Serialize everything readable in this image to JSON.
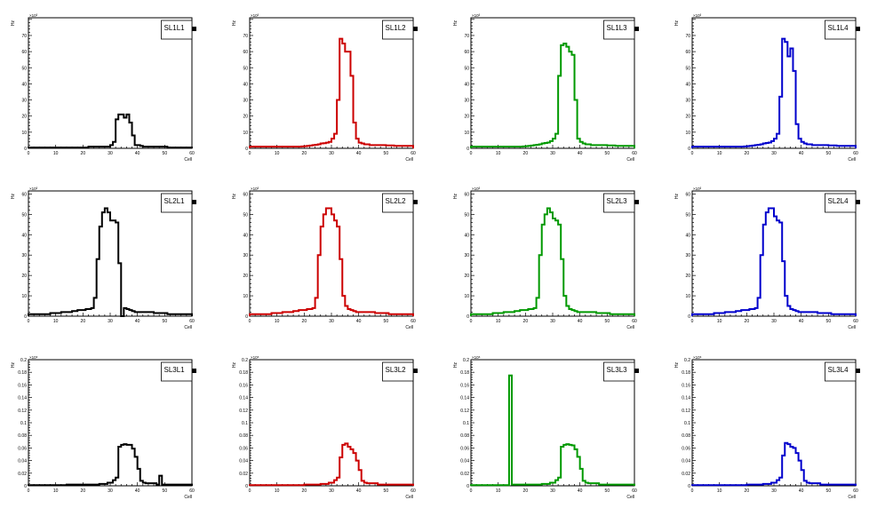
{
  "chart_data": [
    {
      "type": "histogram",
      "title": "SL1L1",
      "xlabel": "Cell",
      "ylabel": "Hz",
      "y_multiplier": "×10³",
      "color": "#000000",
      "xlim": [
        0,
        60
      ],
      "ylim": [
        0,
        81
      ],
      "xticks": [
        "0",
        "10",
        "20",
        "30",
        "40",
        "50",
        "60"
      ],
      "yticks": [
        "0",
        "10",
        "20",
        "30",
        "40",
        "50",
        "60",
        "70"
      ],
      "ytick_values": [
        0,
        10,
        20,
        30,
        40,
        50,
        60,
        70
      ],
      "values": [
        0.5,
        0.5,
        0.5,
        0.5,
        0.5,
        0.5,
        0.5,
        0.5,
        0.5,
        0.5,
        0.5,
        0.5,
        0.5,
        0.5,
        0.5,
        0.5,
        0.5,
        0.5,
        0.5,
        0.5,
        0.5,
        0.5,
        1,
        1,
        1,
        1,
        1,
        1,
        1,
        1,
        2,
        4,
        18,
        21,
        21,
        19,
        21,
        16,
        8,
        2,
        2,
        1.5,
        1,
        1,
        1,
        1,
        1,
        1,
        1,
        1,
        1,
        0.5,
        0.5,
        0.5,
        0.5,
        0.5,
        0.5,
        0.5,
        0.5,
        0.5
      ]
    },
    {
      "type": "histogram",
      "title": "SL1L2",
      "xlabel": "Cell",
      "ylabel": "Hz",
      "y_multiplier": "×10³",
      "color": "#cc0000",
      "xlim": [
        0,
        60
      ],
      "ylim": [
        0,
        81
      ],
      "xticks": [
        "0",
        "10",
        "20",
        "30",
        "40",
        "50",
        "60"
      ],
      "yticks": [
        "0",
        "10",
        "20",
        "30",
        "40",
        "50",
        "60",
        "70"
      ],
      "ytick_values": [
        0,
        10,
        20,
        30,
        40,
        50,
        60,
        70
      ],
      "values": [
        1,
        1,
        1,
        1,
        1,
        1,
        1,
        1,
        1,
        1,
        1,
        1,
        1,
        1,
        1,
        1,
        1,
        1,
        1,
        1.2,
        1.3,
        1.5,
        1.7,
        2,
        2.2,
        2.5,
        3,
        3.2,
        3.5,
        4,
        6,
        9,
        30,
        68,
        65,
        60,
        60,
        45,
        16,
        6,
        3.5,
        3,
        2.5,
        2.5,
        2,
        2,
        2,
        2,
        2,
        2,
        1.8,
        1.8,
        1.8,
        1.5,
        1.5,
        1.5,
        1.5,
        1.5,
        1.5,
        1.5
      ]
    },
    {
      "type": "histogram",
      "title": "SL1L3",
      "xlabel": "Cell",
      "ylabel": "Hz",
      "y_multiplier": "×10³",
      "color": "#009900",
      "xlim": [
        0,
        60
      ],
      "ylim": [
        0,
        81
      ],
      "xticks": [
        "0",
        "10",
        "20",
        "30",
        "40",
        "50",
        "60"
      ],
      "yticks": [
        "0",
        "10",
        "20",
        "30",
        "40",
        "50",
        "60",
        "70"
      ],
      "ytick_values": [
        0,
        10,
        20,
        30,
        40,
        50,
        60,
        70
      ],
      "values": [
        1,
        1,
        1,
        1,
        1,
        1,
        1,
        1,
        1,
        1,
        1,
        1,
        1,
        1,
        1,
        1,
        1,
        1,
        1,
        1.2,
        1.3,
        1.5,
        1.7,
        2,
        2.2,
        2.5,
        3,
        3.3,
        3.6,
        4.5,
        6,
        9,
        45,
        64,
        65,
        63,
        60,
        58,
        30,
        6,
        4,
        3,
        2.5,
        2.5,
        2,
        2,
        2,
        2,
        2,
        2,
        1.8,
        1.8,
        1.8,
        1.5,
        1.5,
        1.5,
        1.5,
        1.5,
        1.5,
        1.5
      ]
    },
    {
      "type": "histogram",
      "title": "SL1L4",
      "xlabel": "Cell",
      "ylabel": "Hz",
      "y_multiplier": "×10³",
      "color": "#0000cc",
      "xlim": [
        0,
        60
      ],
      "ylim": [
        0,
        81
      ],
      "xticks": [
        "0",
        "10",
        "20",
        "30",
        "40",
        "50",
        "60"
      ],
      "yticks": [
        "0",
        "10",
        "20",
        "30",
        "40",
        "50",
        "60",
        "70"
      ],
      "ytick_values": [
        0,
        10,
        20,
        30,
        40,
        50,
        60,
        70
      ],
      "values": [
        1,
        1,
        1,
        1,
        1,
        1,
        1,
        1,
        1,
        1,
        1,
        1,
        1,
        1,
        1,
        1,
        1,
        1,
        1,
        1.2,
        1.3,
        1.5,
        1.7,
        2,
        2.2,
        2.5,
        3,
        3.3,
        3.6,
        4.5,
        6,
        9,
        32,
        68,
        66,
        57,
        62,
        48,
        15,
        6,
        4,
        3,
        2.5,
        2.5,
        2,
        2,
        2,
        2,
        2,
        2,
        1.8,
        1.8,
        1.8,
        1.5,
        1.5,
        1.5,
        1.5,
        1.5,
        1.5,
        1.5
      ]
    },
    {
      "type": "histogram",
      "title": "SL2L1",
      "xlabel": "Cell",
      "ylabel": "Hz",
      "y_multiplier": "×10³",
      "color": "#000000",
      "xlim": [
        0,
        60
      ],
      "ylim": [
        0,
        61.5
      ],
      "xticks": [
        "0",
        "10",
        "20",
        "30",
        "40",
        "50",
        "60"
      ],
      "yticks": [
        "0",
        "10",
        "20",
        "30",
        "40",
        "50",
        "60"
      ],
      "ytick_values": [
        0,
        10,
        20,
        30,
        40,
        50,
        60
      ],
      "values": [
        1,
        1,
        1,
        1,
        1,
        1,
        1,
        1,
        1.5,
        1.5,
        1.5,
        1.5,
        2,
        2,
        2,
        2,
        2.5,
        2.5,
        3,
        3,
        3,
        3.5,
        3.5,
        4,
        9,
        28,
        44,
        51,
        53,
        51,
        47,
        47,
        46,
        26,
        0,
        4,
        3.5,
        3,
        2.5,
        2,
        2,
        2,
        2,
        2,
        2,
        2,
        1.5,
        1.5,
        1.5,
        1.5,
        1.5,
        1,
        1,
        1,
        1,
        1,
        1,
        1,
        1,
        1
      ]
    },
    {
      "type": "histogram",
      "title": "SL2L2",
      "xlabel": "Cell",
      "ylabel": "Hz",
      "y_multiplier": "×10³",
      "color": "#cc0000",
      "xlim": [
        0,
        60
      ],
      "ylim": [
        0,
        61.5
      ],
      "xticks": [
        "0",
        "10",
        "20",
        "30",
        "40",
        "50",
        "60"
      ],
      "yticks": [
        "0",
        "10",
        "20",
        "30",
        "40",
        "50",
        "60"
      ],
      "ytick_values": [
        0,
        10,
        20,
        30,
        40,
        50,
        60
      ],
      "values": [
        1,
        1,
        1,
        1,
        1,
        1,
        1,
        1,
        1.5,
        1.5,
        1.5,
        1.5,
        2,
        2,
        2,
        2,
        2.5,
        2.5,
        3,
        3,
        3,
        3.5,
        3.5,
        4,
        9,
        30,
        44,
        50,
        53,
        53,
        50,
        47,
        44,
        28,
        10,
        5,
        3.5,
        3,
        2.5,
        2,
        2,
        2,
        2,
        2,
        2,
        2,
        1.5,
        1.5,
        1.5,
        1.5,
        1.5,
        1,
        1,
        1,
        1,
        1,
        1,
        1,
        1,
        1
      ]
    },
    {
      "type": "histogram",
      "title": "SL2L3",
      "xlabel": "Cell",
      "ylabel": "Hz",
      "y_multiplier": "×10³",
      "color": "#009900",
      "xlim": [
        0,
        60
      ],
      "ylim": [
        0,
        61.5
      ],
      "xticks": [
        "0",
        "10",
        "20",
        "30",
        "40",
        "50",
        "60"
      ],
      "yticks": [
        "0",
        "10",
        "20",
        "30",
        "40",
        "50",
        "60"
      ],
      "ytick_values": [
        0,
        10,
        20,
        30,
        40,
        50,
        60
      ],
      "values": [
        1,
        1,
        1,
        1,
        1,
        1,
        1,
        1,
        1.5,
        1.5,
        1.5,
        1.5,
        2,
        2,
        2,
        2,
        2.5,
        2.5,
        3,
        3,
        3,
        3.5,
        3.5,
        4,
        9,
        30,
        45,
        50,
        53,
        51,
        48,
        47,
        45,
        28,
        10,
        5,
        3.5,
        3,
        2.5,
        2,
        2,
        2,
        2,
        2,
        2,
        2,
        1.5,
        1.5,
        1.5,
        1.5,
        1.5,
        1,
        1,
        1,
        1,
        1,
        1,
        1,
        1,
        1
      ]
    },
    {
      "type": "histogram",
      "title": "SL2L4",
      "xlabel": "Cell",
      "ylabel": "Hz",
      "y_multiplier": "×10³",
      "color": "#0000cc",
      "xlim": [
        0,
        60
      ],
      "ylim": [
        0,
        61.5
      ],
      "xticks": [
        "0",
        "10",
        "20",
        "30",
        "40",
        "50",
        "60"
      ],
      "yticks": [
        "0",
        "10",
        "20",
        "30",
        "40",
        "50",
        "60"
      ],
      "ytick_values": [
        0,
        10,
        20,
        30,
        40,
        50,
        60
      ],
      "values": [
        1,
        1,
        1,
        1,
        1,
        1,
        1,
        1,
        1.5,
        1.5,
        1.5,
        1.5,
        2,
        2,
        2,
        2,
        2.5,
        2.5,
        3,
        3,
        3,
        3.5,
        3.5,
        4,
        9,
        30,
        45,
        51,
        53,
        53,
        49,
        47,
        46,
        27,
        10,
        5,
        3.5,
        3,
        2.5,
        2,
        2,
        2,
        2,
        2,
        2,
        2,
        1.5,
        1.5,
        1.5,
        1.5,
        1.5,
        1,
        1,
        1,
        1,
        1,
        1,
        1,
        1,
        1
      ]
    },
    {
      "type": "histogram",
      "title": "SL3L1",
      "xlabel": "Cell",
      "ylabel": "Hz",
      "y_multiplier": "×10⁶",
      "color": "#000000",
      "xlim": [
        0,
        60
      ],
      "ylim": [
        0,
        0.2
      ],
      "xticks": [
        "0",
        "10",
        "20",
        "30",
        "40",
        "50",
        "60"
      ],
      "yticks": [
        "0",
        "0.02",
        "0.04",
        "0.06",
        "0.08",
        "0.1",
        "0.12",
        "0.14",
        "0.16",
        "0.18",
        "0.2"
      ],
      "ytick_values": [
        0,
        0.02,
        0.04,
        0.06,
        0.08,
        0.1,
        0.12,
        0.14,
        0.16,
        0.18,
        0.2
      ],
      "values": [
        0.001,
        0.001,
        0.001,
        0.001,
        0.001,
        0.001,
        0.001,
        0.001,
        0.001,
        0.001,
        0.001,
        0.001,
        0.001,
        0.001,
        0.002,
        0.002,
        0.002,
        0.002,
        0.002,
        0.002,
        0.002,
        0.002,
        0.002,
        0.002,
        0.002,
        0.002,
        0.003,
        0.003,
        0.003,
        0.005,
        0.005,
        0.009,
        0.013,
        0.062,
        0.065,
        0.066,
        0.065,
        0.065,
        0.059,
        0.046,
        0.027,
        0.008,
        0.005,
        0.004,
        0.004,
        0.004,
        0.004,
        0.002,
        0.016,
        0.002,
        0.002,
        0.002,
        0.002,
        0.002,
        0.002,
        0.002,
        0.002,
        0.002,
        0.002,
        0.002
      ]
    },
    {
      "type": "histogram",
      "title": "SL3L2",
      "xlabel": "Cell",
      "ylabel": "Hz",
      "y_multiplier": "×10⁶",
      "color": "#cc0000",
      "xlim": [
        0,
        60
      ],
      "ylim": [
        0,
        0.2
      ],
      "xticks": [
        "0",
        "10",
        "20",
        "30",
        "40",
        "50",
        "60"
      ],
      "yticks": [
        "0",
        "0.02",
        "0.04",
        "0.06",
        "0.08",
        "0.1",
        "0.12",
        "0.14",
        "0.16",
        "0.18",
        "0.2"
      ],
      "ytick_values": [
        0,
        0.02,
        0.04,
        0.06,
        0.08,
        0.1,
        0.12,
        0.14,
        0.16,
        0.18,
        0.2
      ],
      "values": [
        0.001,
        0.001,
        0.001,
        0.001,
        0.001,
        0.001,
        0.001,
        0.001,
        0.001,
        0.001,
        0.001,
        0.001,
        0.001,
        0.001,
        0.001,
        0.001,
        0.001,
        0.001,
        0.001,
        0.001,
        0.002,
        0.002,
        0.002,
        0.002,
        0.002,
        0.002,
        0.003,
        0.003,
        0.003,
        0.005,
        0.005,
        0.009,
        0.013,
        0.045,
        0.065,
        0.067,
        0.062,
        0.058,
        0.052,
        0.04,
        0.025,
        0.008,
        0.005,
        0.004,
        0.004,
        0.004,
        0.004,
        0.002,
        0.002,
        0.002,
        0.002,
        0.002,
        0.002,
        0.002,
        0.002,
        0.002,
        0.002,
        0.002,
        0.002,
        0.002
      ]
    },
    {
      "type": "histogram",
      "title": "SL3L3",
      "xlabel": "Cell",
      "ylabel": "Hz",
      "y_multiplier": "×10⁶",
      "color": "#009900",
      "xlim": [
        0,
        60
      ],
      "ylim": [
        0,
        0.2
      ],
      "xticks": [
        "0",
        "10",
        "20",
        "30",
        "40",
        "50",
        "60"
      ],
      "yticks": [
        "0",
        "0.02",
        "0.04",
        "0.06",
        "0.08",
        "0.1",
        "0.12",
        "0.14",
        "0.16",
        "0.18",
        "0.2"
      ],
      "ytick_values": [
        0,
        0.02,
        0.04,
        0.06,
        0.08,
        0.1,
        0.12,
        0.14,
        0.16,
        0.18,
        0.2
      ],
      "values": [
        0.001,
        0.001,
        0.001,
        0.001,
        0.001,
        0.001,
        0.001,
        0.001,
        0.001,
        0.001,
        0.001,
        0.001,
        0.001,
        0.001,
        0.175,
        0.002,
        0.002,
        0.002,
        0.002,
        0.002,
        0.002,
        0.002,
        0.002,
        0.002,
        0.002,
        0.002,
        0.003,
        0.003,
        0.003,
        0.005,
        0.005,
        0.009,
        0.013,
        0.062,
        0.065,
        0.066,
        0.065,
        0.064,
        0.058,
        0.046,
        0.027,
        0.008,
        0.005,
        0.004,
        0.004,
        0.004,
        0.004,
        0.002,
        0.002,
        0.002,
        0.002,
        0.002,
        0.002,
        0.002,
        0.002,
        0.002,
        0.002,
        0.002,
        0.002,
        0.002
      ]
    },
    {
      "type": "histogram",
      "title": "SL3L4",
      "xlabel": "Cell",
      "ylabel": "Hz",
      "y_multiplier": "×10⁶",
      "color": "#0000cc",
      "xlim": [
        0,
        60
      ],
      "ylim": [
        0,
        0.2
      ],
      "xticks": [
        "0",
        "10",
        "20",
        "30",
        "40",
        "50",
        "60"
      ],
      "yticks": [
        "0",
        "0.02",
        "0.04",
        "0.06",
        "0.08",
        "0.1",
        "0.12",
        "0.14",
        "0.16",
        "0.18",
        "0.2"
      ],
      "ytick_values": [
        0,
        0.02,
        0.04,
        0.06,
        0.08,
        0.1,
        0.12,
        0.14,
        0.16,
        0.18,
        0.2
      ],
      "values": [
        0.001,
        0.001,
        0.001,
        0.001,
        0.001,
        0.001,
        0.001,
        0.001,
        0.001,
        0.001,
        0.001,
        0.001,
        0.001,
        0.001,
        0.001,
        0.001,
        0.001,
        0.001,
        0.001,
        0.001,
        0.002,
        0.002,
        0.002,
        0.002,
        0.002,
        0.002,
        0.003,
        0.003,
        0.003,
        0.005,
        0.005,
        0.009,
        0.013,
        0.048,
        0.068,
        0.066,
        0.062,
        0.06,
        0.052,
        0.04,
        0.025,
        0.008,
        0.005,
        0.004,
        0.004,
        0.004,
        0.004,
        0.002,
        0.002,
        0.002,
        0.002,
        0.002,
        0.002,
        0.002,
        0.002,
        0.002,
        0.002,
        0.002,
        0.002,
        0.002
      ]
    }
  ]
}
